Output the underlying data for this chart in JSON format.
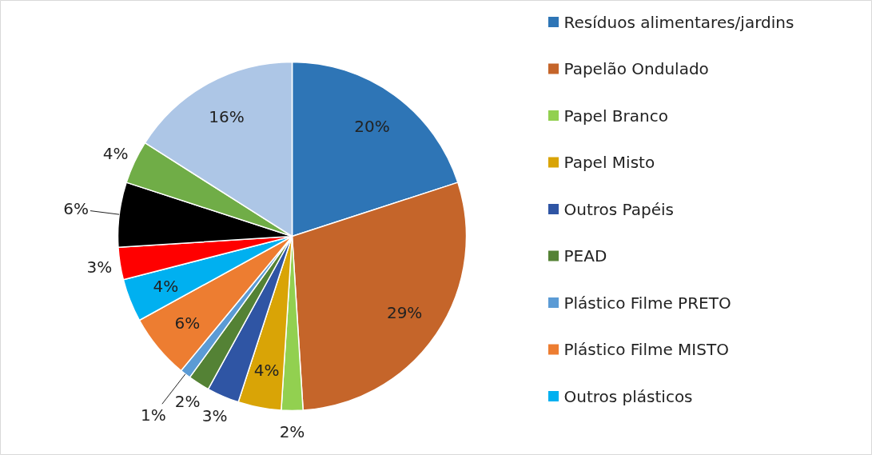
{
  "chart_data": {
    "type": "pie",
    "categories": [
      "Resíduos alimentares/jardins",
      "Papelão Ondulado",
      "Papel Branco",
      "Papel Misto",
      "Outros Papéis",
      "PEAD",
      "Plástico Filme PRETO",
      "Plástico Filme MISTO",
      "Outros plásticos",
      null,
      null,
      null,
      null
    ],
    "values": [
      20,
      29,
      2,
      4,
      3,
      2,
      1,
      6,
      4,
      3,
      6,
      4,
      16
    ],
    "colors": [
      "#2e75b6",
      "#c5652a",
      "#92d050",
      "#d9a406",
      "#2f55a4",
      "#548235",
      "#5b9bd5",
      "#ed7d31",
      "#00b0f0",
      "#ff0000",
      "#000000",
      "#70ad47",
      "#adc6e6"
    ],
    "data_labels": true,
    "value_labels": [
      "20%",
      "29%",
      "2%",
      "4%",
      "3%",
      "2%",
      "1%",
      "6%",
      "4%",
      "3%",
      "6%",
      "4%",
      "16%"
    ],
    "legend": "right"
  }
}
